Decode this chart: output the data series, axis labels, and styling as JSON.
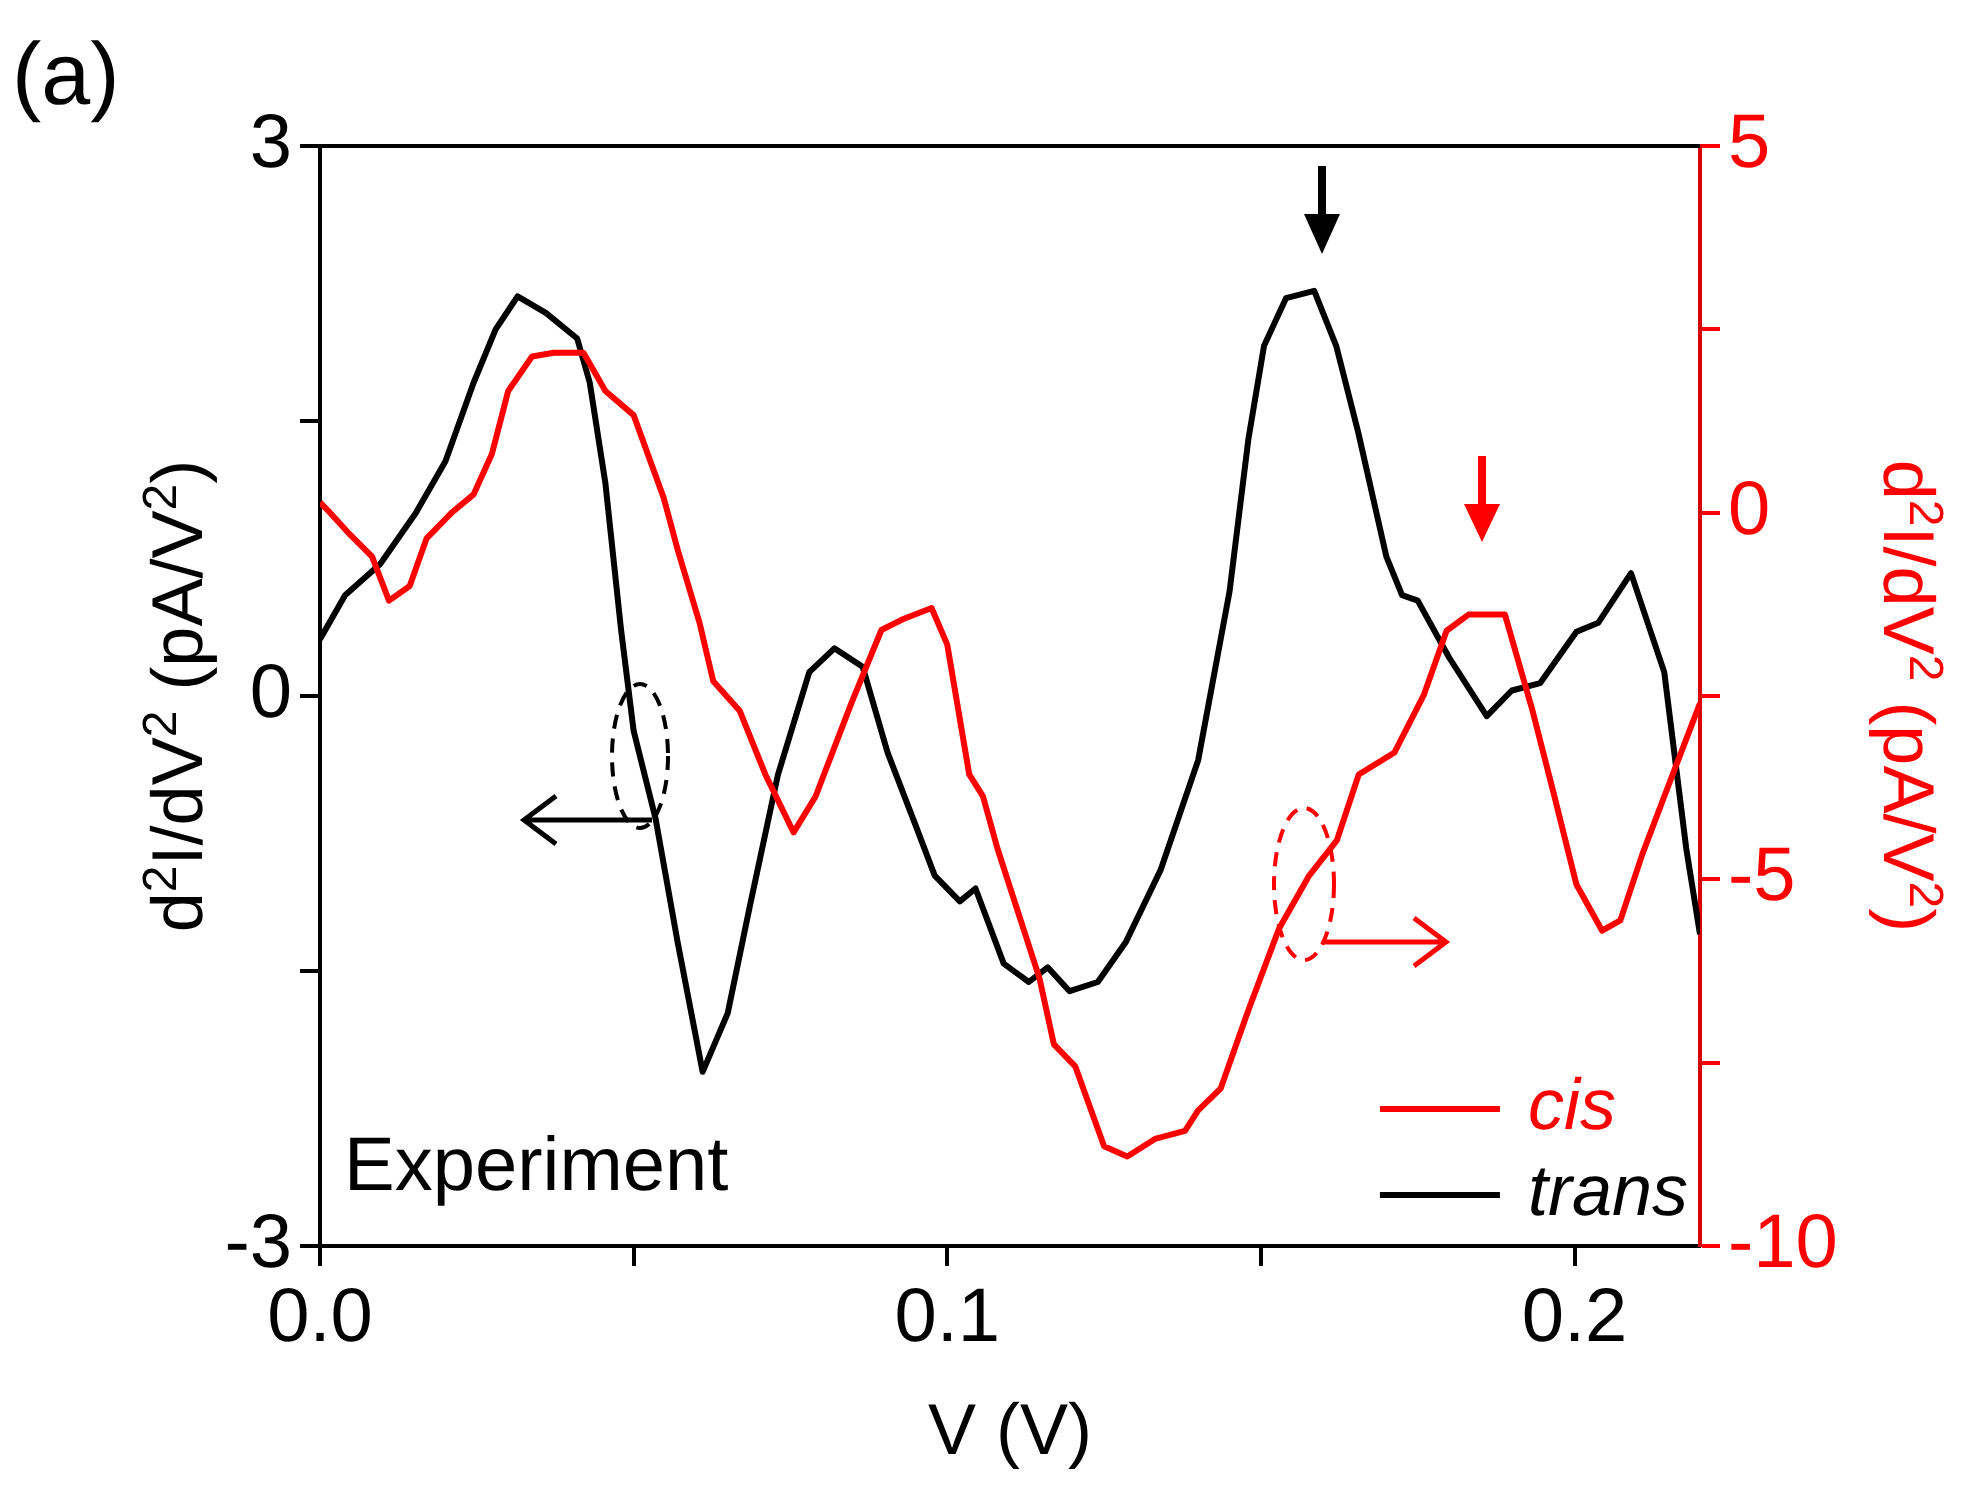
{
  "chart_data": {
    "type": "line",
    "xlabel": "V (V)",
    "ylabel": "d$^{2}$I/dV$^{2}$ (pA/V$^{2}$)",
    "y2label": "d$^{2}$I/dV$^{2}$ (pA/V$^{2}$)",
    "annotations": [
      "(a)",
      "Experiment"
    ],
    "xlim": [
      0,
      0.22
    ],
    "xticks": [
      {
        "value": 0,
        "label": "0.0"
      },
      {
        "value": 0.05,
        "label": null
      },
      0.1,
      {
        "value": 0.15,
        "label": null
      },
      0.2
    ],
    "ylim": [
      -3,
      3
    ],
    "yticks": [
      -3,
      {
        "value": -1.5,
        "label": null
      },
      0,
      {
        "value": 1.5,
        "label": null
      },
      3
    ],
    "y2lim": [
      -10,
      5
    ],
    "y2ticks": [
      -10,
      {
        "value": -7.5,
        "label": null
      },
      -5,
      {
        "value": -2.5,
        "label": null
      },
      0,
      {
        "value": 2.5,
        "label": null
      },
      5
    ],
    "grid": false,
    "legend": "bottom right",
    "marker": "none",
    "line_style": "solid",
    "series": [
      {
        "name": "cis",
        "color": "#ff0000",
        "axis": "y2",
        "x": [
          0,
          0.0016,
          0.0048,
          0.0083,
          0.011,
          0.0143,
          0.017,
          0.021,
          0.0245,
          0.0274,
          0.03,
          0.0338,
          0.0373,
          0.042,
          0.0455,
          0.05,
          0.0548,
          0.057,
          0.0605,
          0.0627,
          0.0669,
          0.071,
          0.0755,
          0.079,
          0.0847,
          0.0895,
          0.093,
          0.0975,
          0.1,
          0.1035,
          0.1057,
          0.108,
          0.1147,
          0.117,
          0.1204,
          0.125,
          0.1287,
          0.1331,
          0.1379,
          0.14,
          0.1436,
          0.1481,
          0.1529,
          0.1576,
          0.1621,
          0.1656,
          0.1713,
          0.176,
          0.1796,
          0.1831,
          0.1889,
          0.1933,
          0.1968,
          0.2003,
          0.2044,
          0.2073,
          0.2108,
          0.2143,
          0.22
        ],
        "values": [
          0.14,
          0,
          -0.3,
          -0.6,
          -1.2,
          -1.0,
          -0.35,
          0,
          0.25,
          0.8,
          1.66,
          2.13,
          2.18,
          2.18,
          1.66,
          1.33,
          0.2,
          -0.5,
          -1.5,
          -2.3,
          -2.7,
          -3.57,
          -4.36,
          -3.87,
          -2.6,
          -1.6,
          -1.45,
          -1.3,
          -1.8,
          -3.57,
          -3.87,
          -4.58,
          -6.35,
          -7.25,
          -7.55,
          -8.64,
          -8.78,
          -8.54,
          -8.43,
          -8.15,
          -7.85,
          -6.76,
          -5.67,
          -4.96,
          -4.47,
          -3.57,
          -3.27,
          -2.48,
          -1.61,
          -1.39,
          -1.39,
          -2.7,
          -3.87,
          -5.07,
          -5.7,
          -5.56,
          -4.66,
          -3.87,
          -2.6
        ]
      },
      {
        "name": "trans",
        "color": "#000000",
        "axis": "y",
        "x": [
          0,
          0.004,
          0.0096,
          0.0153,
          0.02,
          0.0245,
          0.028,
          0.0315,
          0.036,
          0.041,
          0.043,
          0.0455,
          0.048,
          0.05,
          0.0535,
          0.057,
          0.061,
          0.065,
          0.0685,
          0.073,
          0.078,
          0.082,
          0.0865,
          0.0905,
          0.095,
          0.098,
          0.102,
          0.1045,
          0.109,
          0.113,
          0.116,
          0.1195,
          0.124,
          0.1285,
          0.134,
          0.14,
          0.145,
          0.148,
          0.1505,
          0.154,
          0.1585,
          0.162,
          0.1655,
          0.17,
          0.1725,
          0.175,
          0.18,
          0.186,
          0.19,
          0.1945,
          0.2003,
          0.2038,
          0.209,
          0.2143,
          0.2178,
          0.22
        ],
        "values": [
          0.31,
          0.55,
          0.72,
          1.0,
          1.28,
          1.71,
          2.0,
          2.18,
          2.09,
          1.95,
          1.71,
          1.16,
          0.36,
          -0.19,
          -0.67,
          -1.34,
          -2.05,
          -1.73,
          -1.15,
          -0.43,
          0.13,
          0.26,
          0.16,
          -0.31,
          -0.71,
          -0.98,
          -1.12,
          -1.05,
          -1.46,
          -1.56,
          -1.48,
          -1.61,
          -1.56,
          -1.34,
          -0.95,
          -0.35,
          0.57,
          1.4,
          1.91,
          2.17,
          2.21,
          1.91,
          1.44,
          0.76,
          0.55,
          0.52,
          0.21,
          -0.11,
          0.03,
          0.07,
          0.35,
          0.4,
          0.67,
          0.13,
          -0.83,
          -1.3
        ]
      }
    ]
  }
}
